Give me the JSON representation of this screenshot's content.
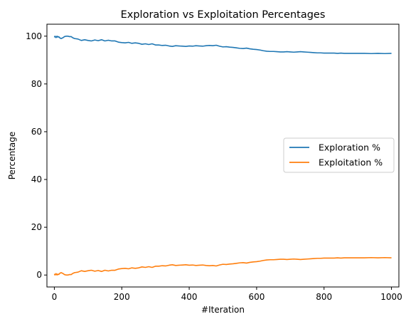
{
  "chart_data": {
    "type": "line",
    "title": "Exploration vs Exploitation Percentages",
    "xlabel": "#Iteration",
    "ylabel": "Percentage",
    "xlim": [
      -22,
      1022
    ],
    "ylim": [
      -5,
      105
    ],
    "xticks": [
      0,
      200,
      400,
      600,
      800,
      1000
    ],
    "yticks": [
      0,
      20,
      40,
      60,
      80,
      100
    ],
    "grid": false,
    "legend_position": "center-right",
    "series": [
      {
        "name": "Exploration %",
        "color": "#1f77b4",
        "x": [
          0,
          2,
          5,
          8,
          10,
          13,
          16,
          20,
          25,
          30,
          35,
          40,
          45,
          50,
          55,
          60,
          70,
          80,
          90,
          100,
          110,
          120,
          130,
          140,
          150,
          160,
          170,
          180,
          190,
          200,
          210,
          220,
          230,
          240,
          250,
          260,
          270,
          280,
          290,
          300,
          310,
          320,
          330,
          340,
          350,
          360,
          370,
          380,
          390,
          400,
          410,
          420,
          430,
          440,
          450,
          460,
          470,
          480,
          490,
          500,
          510,
          520,
          530,
          540,
          550,
          560,
          570,
          580,
          590,
          600,
          610,
          620,
          630,
          640,
          650,
          660,
          670,
          680,
          690,
          700,
          710,
          720,
          730,
          740,
          750,
          760,
          770,
          780,
          790,
          800,
          810,
          820,
          830,
          840,
          850,
          860,
          870,
          880,
          890,
          900,
          920,
          940,
          960,
          980,
          1000
        ],
        "values": [
          99.5,
          100,
          99.4,
          100,
          99.6,
          99.8,
          99.3,
          99.0,
          99.3,
          99.8,
          100,
          100,
          99.8,
          99.8,
          99.3,
          99.0,
          98.8,
          98.2,
          98.5,
          98.2,
          98.0,
          98.4,
          98.1,
          98.5,
          98.0,
          98.3,
          98.0,
          98.0,
          97.5,
          97.3,
          97.2,
          97.4,
          97.0,
          97.2,
          97.0,
          96.6,
          96.8,
          96.5,
          96.8,
          96.3,
          96.3,
          96.1,
          96.2,
          95.9,
          95.7,
          96.0,
          95.9,
          95.8,
          95.7,
          95.9,
          95.8,
          96.0,
          95.9,
          95.8,
          96.0,
          96.1,
          96.0,
          96.2,
          95.8,
          95.5,
          95.6,
          95.4,
          95.3,
          95.1,
          94.9,
          94.8,
          95.0,
          94.7,
          94.5,
          94.4,
          94.2,
          93.9,
          93.7,
          93.6,
          93.6,
          93.5,
          93.4,
          93.4,
          93.5,
          93.4,
          93.3,
          93.4,
          93.5,
          93.4,
          93.3,
          93.2,
          93.1,
          93.0,
          93.0,
          92.9,
          92.9,
          92.9,
          92.9,
          92.8,
          92.9,
          92.8,
          92.8,
          92.8,
          92.8,
          92.8,
          92.8,
          92.7,
          92.8,
          92.7,
          92.8
        ]
      },
      {
        "name": "Exploitation %",
        "color": "#ff7f0e",
        "x": [
          0,
          2,
          5,
          8,
          10,
          13,
          16,
          20,
          25,
          30,
          35,
          40,
          45,
          50,
          55,
          60,
          70,
          80,
          90,
          100,
          110,
          120,
          130,
          140,
          150,
          160,
          170,
          180,
          190,
          200,
          210,
          220,
          230,
          240,
          250,
          260,
          270,
          280,
          290,
          300,
          310,
          320,
          330,
          340,
          350,
          360,
          370,
          380,
          390,
          400,
          410,
          420,
          430,
          440,
          450,
          460,
          470,
          480,
          490,
          500,
          510,
          520,
          530,
          540,
          550,
          560,
          570,
          580,
          590,
          600,
          610,
          620,
          630,
          640,
          650,
          660,
          670,
          680,
          690,
          700,
          710,
          720,
          730,
          740,
          750,
          760,
          770,
          780,
          790,
          800,
          810,
          820,
          830,
          840,
          850,
          860,
          870,
          880,
          890,
          900,
          920,
          940,
          960,
          980,
          1000
        ],
        "values": [
          0.5,
          0,
          0.6,
          0,
          0.4,
          0.2,
          0.7,
          1.0,
          0.7,
          0.2,
          0,
          0,
          0.2,
          0.2,
          0.7,
          1.0,
          1.2,
          1.8,
          1.5,
          1.8,
          2.0,
          1.6,
          1.9,
          1.5,
          2.0,
          1.7,
          2.0,
          2.0,
          2.5,
          2.7,
          2.8,
          2.6,
          3.0,
          2.8,
          3.0,
          3.4,
          3.2,
          3.5,
          3.2,
          3.7,
          3.7,
          3.9,
          3.8,
          4.1,
          4.3,
          4.0,
          4.1,
          4.2,
          4.3,
          4.1,
          4.2,
          4.0,
          4.1,
          4.2,
          4.0,
          3.9,
          4.0,
          3.8,
          4.2,
          4.5,
          4.4,
          4.6,
          4.7,
          4.9,
          5.1,
          5.2,
          5.0,
          5.3,
          5.5,
          5.6,
          5.8,
          6.1,
          6.3,
          6.4,
          6.4,
          6.5,
          6.6,
          6.6,
          6.5,
          6.6,
          6.7,
          6.6,
          6.5,
          6.6,
          6.7,
          6.8,
          6.9,
          7.0,
          7.0,
          7.1,
          7.1,
          7.1,
          7.1,
          7.2,
          7.1,
          7.2,
          7.2,
          7.2,
          7.2,
          7.2,
          7.2,
          7.3,
          7.2,
          7.3,
          7.2
        ]
      }
    ]
  }
}
